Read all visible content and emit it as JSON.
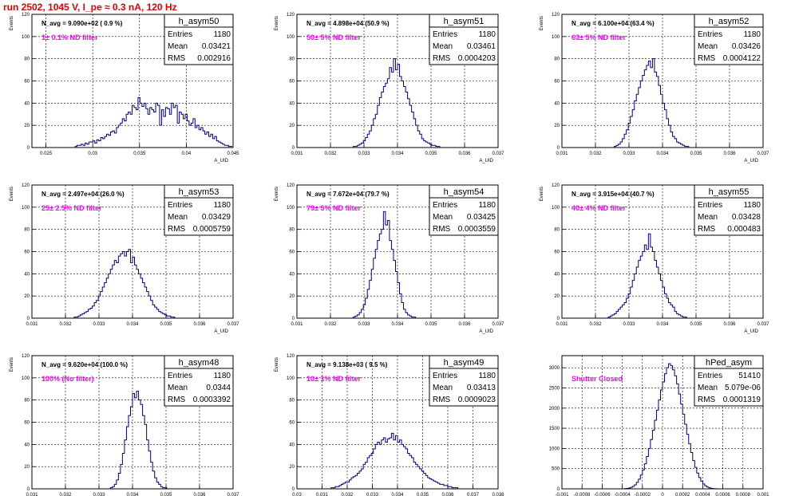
{
  "page": {
    "title": "run 2502,  1045 V, I_pe ≈ 0.3 nA, 120 Hz"
  },
  "colors": {
    "title": "#e00000",
    "annotation": "#ff00ff",
    "histogram_line": "#000080",
    "grid": "#000000"
  },
  "chart_data": [
    {
      "type": "bar",
      "name": "h_asym50",
      "n_avg_label": "N_avg = 9.090e+02 ( 0.9 %)",
      "filter_label": "1± 0.1% ND filter",
      "stats": {
        "entries": "1180",
        "mean": "0.03421",
        "rms": "0.002916"
      },
      "stats_labels": {
        "entries": "Entries",
        "mean": "Mean",
        "rms": "RMS"
      },
      "ylabel": "Events",
      "xlabel": "A_UID",
      "xlim": [
        0.0235,
        0.045
      ],
      "ylim": [
        0,
        120
      ],
      "xticks": [
        0.025,
        0.03,
        0.035,
        0.04,
        0.045
      ],
      "xtick_labels": [
        "0.025",
        "0.03",
        "0.035",
        "0.04",
        "0.045"
      ],
      "yticks": [
        0,
        20,
        40,
        60,
        80,
        100,
        120
      ],
      "grid": true,
      "bin_edges": {
        "start": 0.0235,
        "step": 0.00021
      },
      "values": [
        0,
        0,
        0,
        0,
        0,
        0,
        0,
        0,
        0,
        0,
        0,
        0,
        0,
        0,
        0,
        0,
        0,
        0,
        0,
        0,
        0,
        0,
        1,
        2,
        2,
        3,
        2,
        4,
        3,
        5,
        5,
        6,
        4,
        7,
        6,
        9,
        8,
        10,
        12,
        11,
        14,
        15,
        13,
        18,
        20,
        22,
        26,
        24,
        30,
        32,
        30,
        38,
        36,
        34,
        45,
        40,
        37,
        40,
        35,
        30,
        36,
        34,
        32,
        40,
        38,
        20,
        34,
        28,
        36,
        35,
        30,
        40,
        36,
        38,
        22,
        32,
        30,
        26,
        30,
        24,
        20,
        22,
        26,
        18,
        20,
        16,
        18,
        15,
        12,
        14,
        10,
        12,
        8,
        10,
        6,
        5,
        4,
        3,
        2,
        2,
        1,
        1,
        1,
        0,
        0
      ]
    },
    {
      "type": "bar",
      "name": "h_asym51",
      "n_avg_label": "N_avg = 4.898e+04 (50.9 %)",
      "filter_label": "50± 5% ND filter",
      "stats": {
        "entries": "1180",
        "mean": "0.03461",
        "rms": "0.0004203"
      },
      "stats_labels": {
        "entries": "Entries",
        "mean": "Mean",
        "rms": "RMS"
      },
      "ylabel": "Events",
      "xlabel": "A_UID",
      "xlim": [
        0.031,
        0.037
      ],
      "ylim": [
        0,
        120
      ],
      "xticks": [
        0.031,
        0.032,
        0.033,
        0.034,
        0.035,
        0.036,
        0.037
      ],
      "xtick_labels": [
        "0.031",
        "0.032",
        "0.033",
        "0.034",
        "0.035",
        "0.036",
        "0.037"
      ],
      "yticks": [
        0,
        20,
        40,
        60,
        80,
        100,
        120
      ],
      "grid": true,
      "bin_edges": {
        "start": 0.031,
        "step": 6e-05
      },
      "values": [
        0,
        0,
        0,
        0,
        0,
        0,
        0,
        0,
        0,
        0,
        0,
        0,
        0,
        0,
        0,
        0,
        0,
        0,
        0,
        0,
        0,
        0,
        0,
        0,
        0,
        0,
        0,
        0,
        1,
        1,
        2,
        3,
        4,
        6,
        9,
        12,
        15,
        20,
        26,
        30,
        38,
        45,
        50,
        55,
        58,
        62,
        72,
        68,
        80,
        70,
        75,
        64,
        60,
        55,
        50,
        44,
        38,
        32,
        26,
        20,
        15,
        12,
        8,
        6,
        5,
        4,
        3,
        2,
        2,
        1,
        1,
        0,
        0,
        0,
        0,
        0,
        0,
        0,
        0,
        0,
        0,
        0,
        0,
        0,
        0,
        0,
        0,
        0,
        0,
        0,
        0,
        0,
        0,
        0,
        0,
        0,
        0,
        0,
        0,
        0
      ]
    },
    {
      "type": "bar",
      "name": "h_asym52",
      "n_avg_label": "N_avg = 6.100e+04 (63.4 %)",
      "filter_label": "63± 5% ND filter",
      "stats": {
        "entries": "1180",
        "mean": "0.03426",
        "rms": "0.0004122"
      },
      "stats_labels": {
        "entries": "Entries",
        "mean": "Mean",
        "rms": "RMS"
      },
      "ylabel": "Events",
      "xlabel": "A_UID",
      "xlim": [
        0.031,
        0.037
      ],
      "ylim": [
        0,
        120
      ],
      "xticks": [
        0.031,
        0.032,
        0.033,
        0.034,
        0.035,
        0.036,
        0.037
      ],
      "xtick_labels": [
        "0.031",
        "0.032",
        "0.033",
        "0.034",
        "0.035",
        "0.036",
        "0.037"
      ],
      "yticks": [
        0,
        20,
        40,
        60,
        80,
        100,
        120
      ],
      "grid": true,
      "bin_edges": {
        "start": 0.031,
        "step": 6e-05
      },
      "values": [
        0,
        0,
        0,
        0,
        0,
        0,
        0,
        0,
        0,
        0,
        0,
        0,
        0,
        0,
        0,
        0,
        0,
        0,
        0,
        0,
        0,
        0,
        0,
        0,
        0,
        0,
        1,
        2,
        3,
        5,
        8,
        12,
        16,
        22,
        28,
        34,
        42,
        48,
        54,
        60,
        65,
        70,
        74,
        78,
        72,
        80,
        68,
        64,
        56,
        48,
        40,
        34,
        26,
        20,
        14,
        10,
        8,
        5,
        4,
        3,
        2,
        1,
        1,
        0,
        0,
        0,
        0,
        0,
        0,
        0,
        0,
        0,
        0,
        0,
        0,
        0,
        0,
        0,
        0,
        0,
        0,
        0,
        0,
        0,
        0,
        0,
        0,
        0,
        0,
        0,
        0,
        0,
        0,
        0,
        0,
        0,
        0,
        0,
        0,
        0
      ]
    },
    {
      "type": "bar",
      "name": "h_asym53",
      "n_avg_label": "N_avg = 2.497e+04 (26.0 %)",
      "filter_label": "25± 2.5% ND filter",
      "stats": {
        "entries": "1180",
        "mean": "0.03429",
        "rms": "0.0005759"
      },
      "stats_labels": {
        "entries": "Entries",
        "mean": "Mean",
        "rms": "RMS"
      },
      "ylabel": "Events",
      "xlabel": "A_UID",
      "xlim": [
        0.031,
        0.037
      ],
      "ylim": [
        0,
        120
      ],
      "xticks": [
        0.031,
        0.032,
        0.033,
        0.034,
        0.035,
        0.036,
        0.037
      ],
      "xtick_labels": [
        "0.031",
        "0.032",
        "0.033",
        "0.034",
        "0.035",
        "0.036",
        "0.037"
      ],
      "yticks": [
        0,
        20,
        40,
        60,
        80,
        100,
        120
      ],
      "grid": true,
      "bin_edges": {
        "start": 0.031,
        "step": 6e-05
      },
      "values": [
        0,
        0,
        0,
        0,
        0,
        0,
        0,
        0,
        0,
        0,
        0,
        0,
        0,
        0,
        0,
        0,
        0,
        0,
        0,
        0,
        0,
        1,
        1,
        2,
        3,
        4,
        5,
        6,
        8,
        9,
        11,
        14,
        16,
        20,
        24,
        28,
        32,
        36,
        40,
        44,
        48,
        52,
        50,
        56,
        58,
        60,
        56,
        60,
        62,
        50,
        55,
        48,
        44,
        40,
        36,
        32,
        28,
        24,
        20,
        16,
        12,
        10,
        8,
        6,
        5,
        4,
        3,
        2,
        2,
        1,
        1,
        0,
        0,
        0,
        0,
        0,
        0,
        0,
        0,
        0,
        0,
        0,
        0,
        0,
        0,
        0,
        0,
        0,
        0,
        0,
        0,
        0,
        0,
        0,
        0,
        0,
        0,
        0,
        0,
        0
      ]
    },
    {
      "type": "bar",
      "name": "h_asym54",
      "n_avg_label": "N_avg = 7.672e+04 (79.7 %)",
      "filter_label": "79± 5% ND filter",
      "stats": {
        "entries": "1180",
        "mean": "0.03425",
        "rms": "0.0003559"
      },
      "stats_labels": {
        "entries": "Entries",
        "mean": "Mean",
        "rms": "RMS"
      },
      "ylabel": "Events",
      "xlabel": "A_UID",
      "xlim": [
        0.031,
        0.037
      ],
      "ylim": [
        0,
        120
      ],
      "xticks": [
        0.031,
        0.032,
        0.033,
        0.034,
        0.035,
        0.036,
        0.037
      ],
      "xtick_labels": [
        "0.031",
        "0.032",
        "0.033",
        "0.034",
        "0.035",
        "0.036",
        "0.037"
      ],
      "yticks": [
        0,
        20,
        40,
        60,
        80,
        100,
        120
      ],
      "grid": true,
      "bin_edges": {
        "start": 0.031,
        "step": 6e-05
      },
      "values": [
        0,
        0,
        0,
        0,
        0,
        0,
        0,
        0,
        0,
        0,
        0,
        0,
        0,
        0,
        0,
        0,
        0,
        0,
        0,
        0,
        0,
        0,
        0,
        0,
        0,
        0,
        0,
        0,
        1,
        2,
        3,
        5,
        8,
        12,
        18,
        26,
        34,
        44,
        54,
        62,
        70,
        76,
        80,
        96,
        84,
        88,
        70,
        62,
        52,
        42,
        32,
        22,
        14,
        8,
        5,
        3,
        2,
        1,
        1,
        0,
        0,
        0,
        0,
        0,
        0,
        0,
        0,
        0,
        0,
        0,
        0,
        0,
        0,
        0,
        0,
        0,
        0,
        0,
        0,
        0,
        0,
        0,
        0,
        0,
        0,
        0,
        0,
        0,
        0,
        0,
        0,
        0,
        0,
        0,
        0,
        0,
        0,
        0,
        0,
        0
      ]
    },
    {
      "type": "bar",
      "name": "h_asym55",
      "n_avg_label": "N_avg = 3.915e+04 (40.7 %)",
      "filter_label": "40± 4% ND filter",
      "stats": {
        "entries": "1180",
        "mean": "0.03428",
        "rms": "0.000483"
      },
      "stats_labels": {
        "entries": "Entries",
        "mean": "Mean",
        "rms": "RMS"
      },
      "ylabel": "Events",
      "xlabel": "A_UID",
      "xlim": [
        0.031,
        0.037
      ],
      "ylim": [
        0,
        120
      ],
      "xticks": [
        0.031,
        0.032,
        0.033,
        0.034,
        0.035,
        0.036,
        0.037
      ],
      "xtick_labels": [
        "0.031",
        "0.032",
        "0.033",
        "0.034",
        "0.035",
        "0.036",
        "0.037"
      ],
      "yticks": [
        0,
        20,
        40,
        60,
        80,
        100,
        120
      ],
      "grid": true,
      "bin_edges": {
        "start": 0.031,
        "step": 6e-05
      },
      "values": [
        0,
        0,
        0,
        0,
        0,
        0,
        0,
        0,
        0,
        0,
        0,
        0,
        0,
        0,
        0,
        0,
        0,
        0,
        0,
        0,
        0,
        0,
        0,
        1,
        2,
        3,
        4,
        6,
        8,
        10,
        12,
        14,
        18,
        22,
        28,
        34,
        40,
        46,
        52,
        56,
        60,
        66,
        62,
        76,
        64,
        60,
        52,
        46,
        40,
        34,
        28,
        22,
        18,
        14,
        12,
        10,
        6,
        4,
        3,
        2,
        1,
        1,
        0,
        0,
        0,
        0,
        0,
        0,
        0,
        0,
        0,
        0,
        0,
        0,
        0,
        0,
        0,
        0,
        0,
        0,
        0,
        0,
        0,
        0,
        0,
        0,
        0,
        0,
        0,
        0,
        0,
        0,
        0,
        0,
        0,
        0,
        0,
        0,
        0,
        0
      ]
    },
    {
      "type": "bar",
      "name": "h_asym48",
      "n_avg_label": "N_avg = 9.620e+04 (100.0 %)",
      "filter_label": "100% (No filter)",
      "stats": {
        "entries": "1180",
        "mean": "0.0344",
        "rms": "0.0003392"
      },
      "stats_labels": {
        "entries": "Entries",
        "mean": "Mean",
        "rms": "RMS"
      },
      "ylabel": "Events",
      "xlabel": "A_UID",
      "xlim": [
        0.031,
        0.037
      ],
      "ylim": [
        0,
        120
      ],
      "xticks": [
        0.031,
        0.032,
        0.033,
        0.034,
        0.035,
        0.036,
        0.037
      ],
      "xtick_labels": [
        "0.031",
        "0.032",
        "0.033",
        "0.034",
        "0.035",
        "0.036",
        "0.037"
      ],
      "yticks": [
        0,
        20,
        40,
        60,
        80,
        100,
        120
      ],
      "grid": true,
      "bin_edges": {
        "start": 0.031,
        "step": 6e-05
      },
      "values": [
        0,
        0,
        0,
        0,
        0,
        0,
        0,
        0,
        0,
        0,
        0,
        0,
        0,
        0,
        0,
        0,
        0,
        0,
        0,
        0,
        0,
        0,
        0,
        0,
        0,
        0,
        0,
        0,
        0,
        0,
        0,
        0,
        0,
        0,
        0,
        0,
        0,
        0,
        0,
        1,
        2,
        4,
        8,
        14,
        22,
        32,
        44,
        56,
        66,
        74,
        86,
        82,
        88,
        80,
        76,
        66,
        58,
        44,
        34,
        24,
        16,
        10,
        6,
        4,
        2,
        1,
        1,
        0,
        0,
        0,
        0,
        0,
        0,
        0,
        0,
        0,
        0,
        0,
        0,
        0,
        0,
        0,
        0,
        0,
        0,
        0,
        0,
        0,
        0,
        0,
        0,
        0,
        0,
        0,
        0,
        0,
        0,
        0,
        0,
        0
      ]
    },
    {
      "type": "bar",
      "name": "h_asym49",
      "n_avg_label": "N_avg = 9.138e+03 ( 9.5 %)",
      "filter_label": "10± 1% ND filter",
      "stats": {
        "entries": "1180",
        "mean": "0.03413",
        "rms": "0.0009023"
      },
      "stats_labels": {
        "entries": "Entries",
        "mean": "Mean",
        "rms": "RMS"
      },
      "ylabel": "Events",
      "xlabel": "A_UID",
      "xlim": [
        0.03,
        0.038
      ],
      "ylim": [
        0,
        120
      ],
      "xticks": [
        0.03,
        0.031,
        0.032,
        0.033,
        0.034,
        0.035,
        0.036,
        0.037,
        0.038
      ],
      "xtick_labels": [
        "0.03",
        "0.031",
        "0.032",
        "0.033",
        "0.034",
        "0.035",
        "0.036",
        "0.037",
        "0.038"
      ],
      "yticks": [
        0,
        20,
        40,
        60,
        80,
        100,
        120
      ],
      "grid": true,
      "bin_edges": {
        "start": 0.03,
        "step": 8e-05
      },
      "values": [
        0,
        0,
        0,
        0,
        0,
        0,
        0,
        0,
        0,
        0,
        0,
        0,
        0,
        0,
        0,
        0,
        0,
        1,
        1,
        2,
        2,
        3,
        4,
        5,
        6,
        6,
        8,
        10,
        11,
        12,
        14,
        16,
        18,
        22,
        24,
        28,
        30,
        32,
        36,
        40,
        42,
        40,
        44,
        46,
        42,
        45,
        46,
        50,
        44,
        48,
        42,
        44,
        40,
        38,
        36,
        32,
        30,
        28,
        24,
        22,
        20,
        18,
        16,
        14,
        12,
        10,
        9,
        8,
        7,
        6,
        5,
        4,
        4,
        3,
        3,
        2,
        2,
        1,
        1,
        1,
        0,
        0,
        0,
        0,
        0,
        0,
        0,
        0,
        0,
        0,
        0,
        0,
        0,
        0,
        0,
        0,
        0,
        0,
        0,
        0
      ]
    },
    {
      "type": "bar",
      "name": "hPed_asym",
      "n_avg_label": "",
      "filter_label": "Shutter Closed",
      "stats": {
        "entries": "51410",
        "mean": "5.079e-06",
        "rms": "0.0001319"
      },
      "stats_labels": {
        "entries": "Entries",
        "mean": "Mean",
        "rms": "RMS"
      },
      "ylabel": "",
      "xlabel": "",
      "xlim": [
        -0.001,
        0.001
      ],
      "ylim": [
        0,
        3300
      ],
      "xticks": [
        -0.001,
        -0.0008,
        -0.0006,
        -0.0004,
        -0.0002,
        0,
        0.0002,
        0.0004,
        0.0006,
        0.0008,
        0.001
      ],
      "xtick_labels": [
        "-0.001",
        "-0.0008",
        "-0.0006",
        "-0.0004",
        "-0.0002",
        "0",
        "0.0002",
        "0.0004",
        "0.0006",
        "0.0008",
        "0.001"
      ],
      "yticks": [
        0,
        500,
        1000,
        1500,
        2000,
        2500,
        3000
      ],
      "grid": true,
      "bin_edges": {
        "start": -0.001,
        "step": 2e-05
      },
      "values": [
        0,
        0,
        0,
        0,
        0,
        0,
        0,
        0,
        0,
        0,
        0,
        0,
        0,
        0,
        0,
        0,
        0,
        0,
        0,
        0,
        0,
        0,
        0,
        0,
        0,
        0,
        0,
        0,
        0,
        0,
        0,
        5,
        10,
        20,
        35,
        60,
        100,
        160,
        240,
        340,
        470,
        620,
        800,
        1000,
        1220,
        1450,
        1700,
        1950,
        2200,
        2450,
        2650,
        2850,
        3000,
        3100,
        3050,
        2950,
        2800,
        2600,
        2350,
        2100,
        1850,
        1600,
        1350,
        1120,
        900,
        700,
        530,
        390,
        280,
        190,
        120,
        75,
        45,
        25,
        12,
        6,
        3,
        0,
        0,
        0,
        0,
        0,
        0,
        0,
        0,
        0,
        0,
        0,
        0,
        0,
        0,
        0,
        0,
        0,
        0,
        0,
        0,
        0,
        0,
        0
      ]
    }
  ]
}
